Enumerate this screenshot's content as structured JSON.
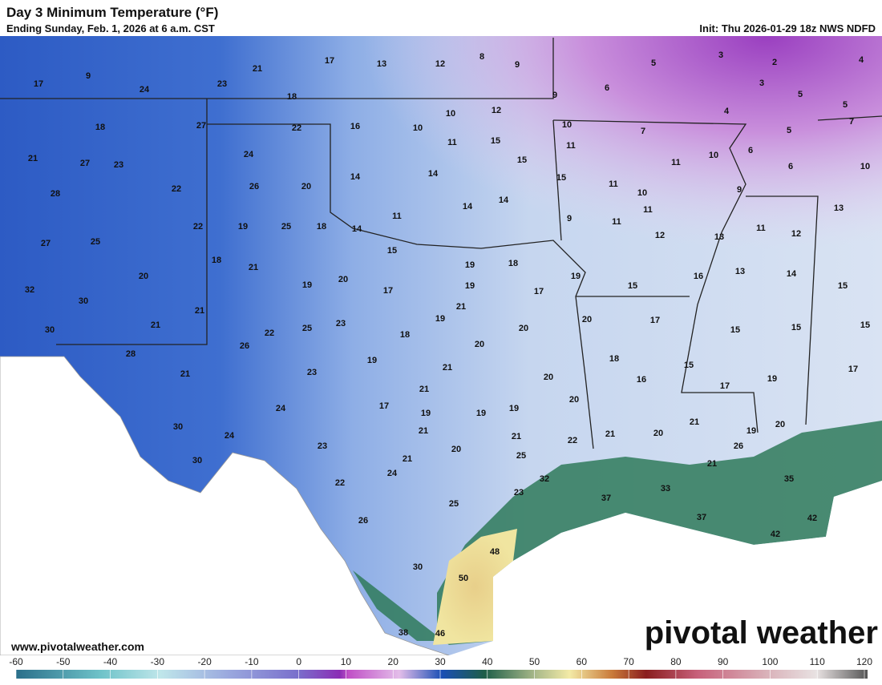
{
  "header": {
    "title": "Day 3 Minimum Temperature (°F)",
    "subtitle": "Ending Sunday, Feb. 1, 2026 at 6 a.m. CST",
    "init": "Init: Thu 2026-01-29 18z NWS NDFD"
  },
  "footer": {
    "website": "www.pivotalweather.com",
    "logo": "pivotal weather"
  },
  "map": {
    "point_labels": [
      17,
      9,
      24,
      23,
      21,
      17,
      13,
      12,
      8,
      9,
      5,
      3,
      2,
      4,
      6,
      3,
      5,
      5,
      4,
      18,
      18,
      27,
      22,
      16,
      10,
      10,
      12,
      9,
      10,
      7,
      5,
      7,
      11,
      15,
      11,
      6,
      10,
      11,
      6,
      10,
      21,
      27,
      23,
      24,
      15,
      14,
      14,
      15,
      11,
      9,
      22,
      28,
      26,
      20,
      10,
      14,
      14,
      11,
      13,
      11,
      9,
      11,
      11,
      12,
      22,
      19,
      25,
      18,
      14,
      12,
      13,
      25,
      27,
      15,
      19,
      18,
      18,
      21,
      13,
      14,
      20,
      19,
      16,
      19,
      20,
      19,
      15,
      15,
      32,
      17,
      17,
      30,
      21,
      21,
      30,
      21,
      25,
      23,
      19,
      20,
      17,
      15,
      15,
      15,
      22,
      18,
      20,
      26,
      20,
      28,
      19,
      18,
      15,
      17,
      23,
      21,
      20,
      16,
      19,
      21,
      17,
      21,
      24,
      17,
      20,
      19,
      19,
      19,
      30,
      21,
      21,
      24,
      21,
      22,
      21,
      20,
      19,
      20,
      23,
      20,
      26,
      25,
      30,
      21,
      24,
      32,
      21,
      35,
      22,
      33,
      23,
      37,
      25,
      37,
      42,
      26,
      42,
      48,
      30,
      50,
      38,
      46
    ]
  },
  "colorbar": {
    "ticks": [
      -60,
      -50,
      -40,
      -30,
      -20,
      -10,
      0,
      10,
      20,
      30,
      40,
      50,
      60,
      70,
      80,
      90,
      100,
      110,
      120
    ]
  }
}
